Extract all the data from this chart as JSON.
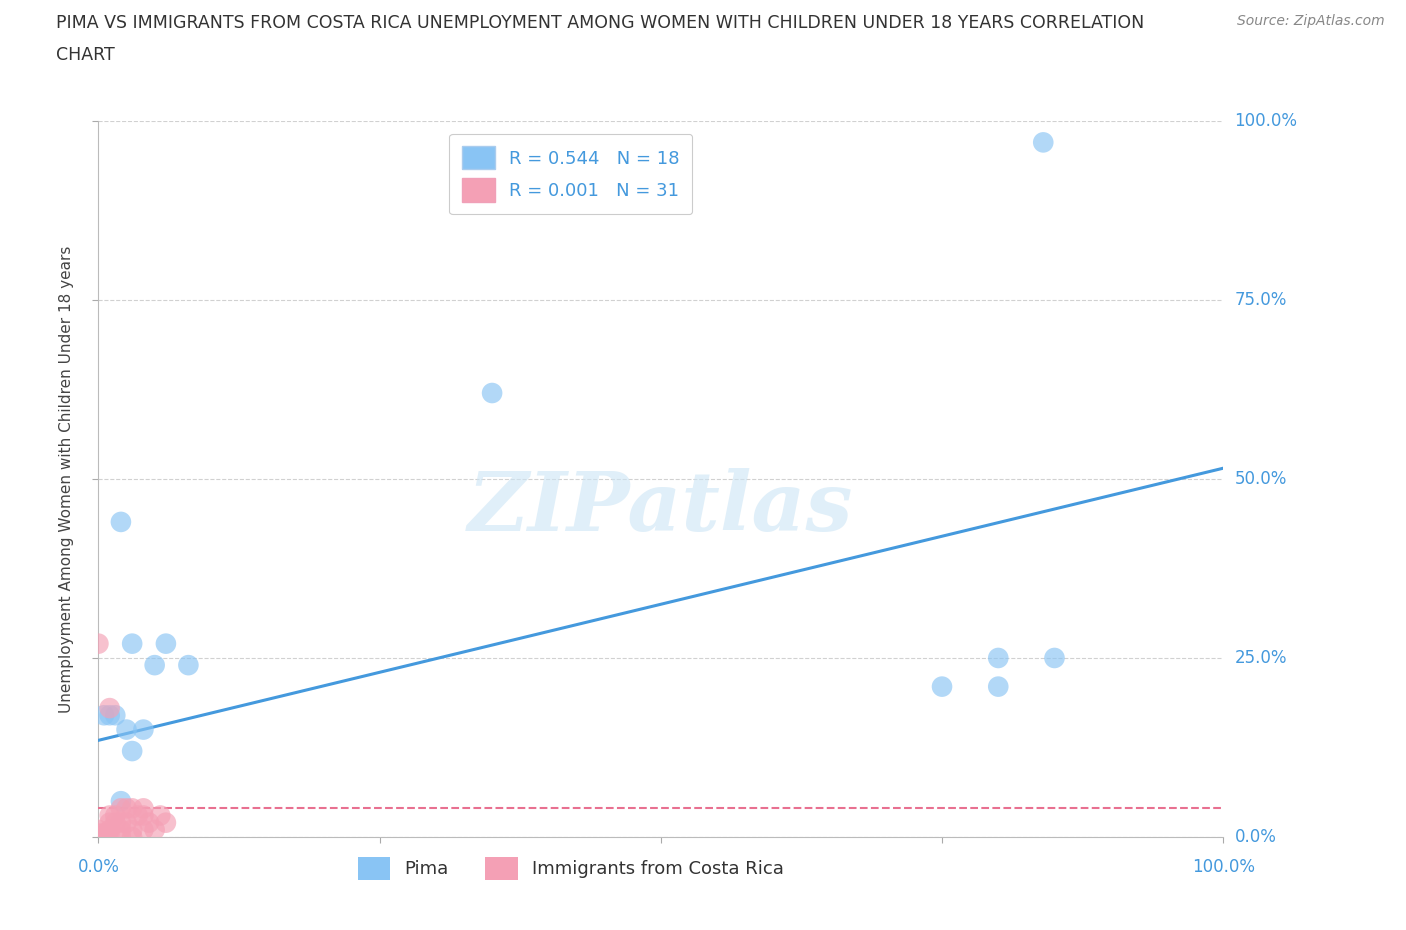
{
  "title_line1": "PIMA VS IMMIGRANTS FROM COSTA RICA UNEMPLOYMENT AMONG WOMEN WITH CHILDREN UNDER 18 YEARS CORRELATION",
  "title_line2": "CHART",
  "source": "Source: ZipAtlas.com",
  "ylabel": "Unemployment Among Women with Children Under 18 years",
  "pima_color": "#89c4f4",
  "immigrants_color": "#f4a0b5",
  "pima_line_color": "#4499dd",
  "immigrants_line_color": "#e87090",
  "pima_R": 0.544,
  "pima_N": 18,
  "immigrants_R": 0.001,
  "immigrants_N": 31,
  "xlim": [
    0.0,
    1.0
  ],
  "ylim": [
    0.0,
    1.0
  ],
  "xticks": [
    0.0,
    0.25,
    0.5,
    0.75,
    1.0
  ],
  "yticks": [
    0.0,
    0.25,
    0.5,
    0.75,
    1.0
  ],
  "xtick_labels": [
    "0.0%",
    "",
    "",
    "",
    "100.0%"
  ],
  "ytick_labels": [
    "0.0%",
    "25.0%",
    "50.0%",
    "75.0%",
    "100.0%"
  ],
  "background_color": "#ffffff",
  "grid_color": "#cccccc",
  "pima_x": [
    0.005,
    0.01,
    0.015,
    0.02,
    0.02,
    0.025,
    0.03,
    0.03,
    0.04,
    0.05,
    0.06,
    0.08,
    0.35,
    0.75,
    0.8,
    0.84,
    0.85,
    0.8
  ],
  "pima_y": [
    0.17,
    0.17,
    0.17,
    0.44,
    0.05,
    0.15,
    0.27,
    0.12,
    0.15,
    0.24,
    0.27,
    0.24,
    0.62,
    0.21,
    0.25,
    0.97,
    0.25,
    0.21
  ],
  "immigrants_x": [
    0.0,
    0.0,
    0.0,
    0.005,
    0.005,
    0.008,
    0.01,
    0.01,
    0.01,
    0.01,
    0.015,
    0.015,
    0.02,
    0.02,
    0.02,
    0.02,
    0.025,
    0.025,
    0.03,
    0.03,
    0.03,
    0.035,
    0.04,
    0.04,
    0.04,
    0.045,
    0.05,
    0.055,
    0.06,
    0.0,
    0.01
  ],
  "immigrants_y": [
    0.0,
    0.005,
    0.01,
    0.0,
    0.005,
    0.005,
    0.005,
    0.01,
    0.02,
    0.03,
    0.02,
    0.03,
    0.0,
    0.01,
    0.02,
    0.04,
    0.02,
    0.04,
    0.0,
    0.01,
    0.04,
    0.03,
    0.01,
    0.03,
    0.04,
    0.02,
    0.01,
    0.03,
    0.02,
    0.27,
    0.18
  ],
  "pima_line_x": [
    0.0,
    1.0
  ],
  "pima_line_y_start": 0.135,
  "pima_line_y_end": 0.515,
  "immigrants_line_x": [
    0.0,
    1.0
  ],
  "immigrants_line_y_start": 0.04,
  "immigrants_line_y_end": 0.04,
  "watermark": "ZIPatlas",
  "watermark_color": "#cce5f5",
  "legend_R_label_1": "R = 0.544   N = 18",
  "legend_R_label_2": "R = 0.001   N = 31",
  "legend_bottom_1": "Pima",
  "legend_bottom_2": "Immigrants from Costa Rica"
}
